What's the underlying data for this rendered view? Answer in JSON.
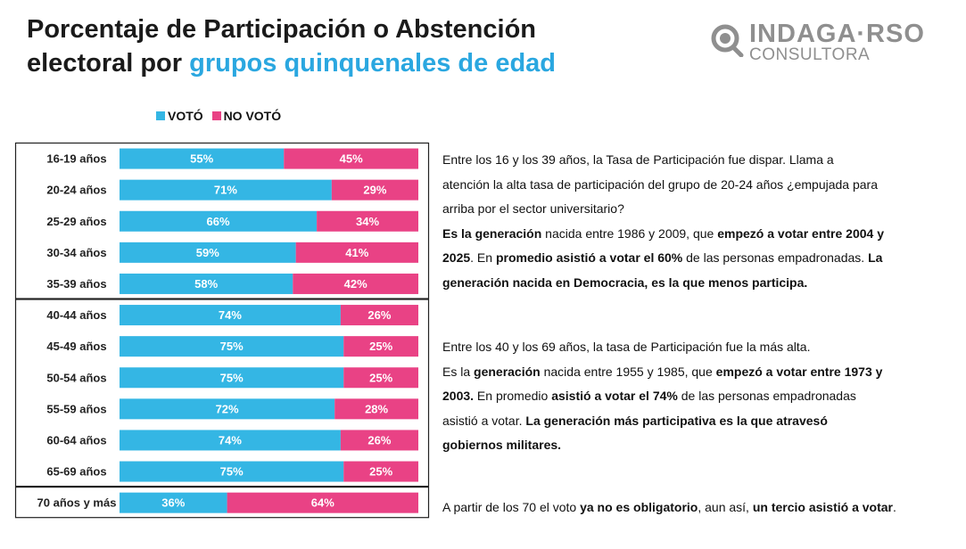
{
  "title": {
    "line1": "Porcentaje de Participación o Abstención",
    "line2_prefix": "electoral por ",
    "line2_highlight": "grupos quinquenales de edad"
  },
  "logo": {
    "main": "INDAGA·RSO",
    "sub": "CONSULTORA",
    "icon": "magnifier-icon"
  },
  "colors": {
    "voto": "#34b6e4",
    "no_voto": "#e94285",
    "title_highlight": "#2aa7e0",
    "logo": "#8f8f8f"
  },
  "legend": {
    "voto": "VOTÓ",
    "no_voto": "NO VOTÓ"
  },
  "chart_data": {
    "type": "bar",
    "orientation": "horizontal",
    "stacked": true,
    "categories": [
      "16-19 años",
      "20-24 años",
      "25-29 años",
      "30-34 años",
      "35-39 años",
      "40-44 años",
      "45-49 años",
      "50-54 años",
      "55-59 años",
      "60-64 años",
      "65-69 años",
      "70 años y más"
    ],
    "series": [
      {
        "name": "VOTÓ",
        "values": [
          55,
          71,
          66,
          59,
          58,
          74,
          75,
          75,
          72,
          74,
          75,
          36
        ]
      },
      {
        "name": "NO VOTÓ",
        "values": [
          45,
          29,
          34,
          41,
          42,
          26,
          25,
          25,
          28,
          26,
          25,
          64
        ]
      }
    ],
    "groups": [
      [
        0,
        4
      ],
      [
        5,
        10
      ],
      [
        11,
        11
      ]
    ],
    "unit": "%",
    "xlim": [
      0,
      100
    ]
  },
  "descriptions": [
    {
      "lines": [
        [
          {
            "t": "Entre los 16 y los 39 años, la Tasa de Participación fue dispar. Llama a",
            "b": false
          }
        ],
        [
          {
            "t": "atención la alta tasa de participación del grupo de 20-24 años ¿empujada para",
            "b": false
          }
        ],
        [
          {
            "t": "arriba por el sector universitario?",
            "b": false
          }
        ],
        [
          {
            "t": "Es la generación",
            "b": true
          },
          {
            "t": " nacida entre 1986 y 2009, que ",
            "b": false
          },
          {
            "t": "empezó a votar entre 2004 y",
            "b": true
          }
        ],
        [
          {
            "t": "2025",
            "b": true
          },
          {
            "t": ". En ",
            "b": false
          },
          {
            "t": "promedio asistió a votar el 60%",
            "b": true
          },
          {
            "t": " de las personas empadronadas. ",
            "b": false
          },
          {
            "t": "La",
            "b": true
          }
        ],
        [
          {
            "t": "generación nacida en Democracia, es la que menos participa.",
            "b": true
          }
        ]
      ]
    },
    {
      "lines": [
        [
          {
            "t": "Entre los 40 y los 69 años, la tasa de Participación fue la más alta.",
            "b": false
          }
        ],
        [
          {
            "t": "Es la ",
            "b": false
          },
          {
            "t": "generación",
            "b": true
          },
          {
            "t": " nacida entre 1955 y 1985, que ",
            "b": false
          },
          {
            "t": "empezó a votar entre 1973 y",
            "b": true
          }
        ],
        [
          {
            "t": "2003.",
            "b": true
          },
          {
            "t": " En promedio ",
            "b": false
          },
          {
            "t": "asistió a votar el 74%",
            "b": true
          },
          {
            "t": " de las personas empadronadas",
            "b": false
          }
        ],
        [
          {
            "t": "asistió a votar. ",
            "b": false
          },
          {
            "t": "La generación más participativa es la que atravesó",
            "b": true
          }
        ],
        [
          {
            "t": "gobiernos militares.",
            "b": true
          }
        ]
      ]
    },
    {
      "lines": [
        [
          {
            "t": "A partir de los 70 el voto ",
            "b": false
          },
          {
            "t": "ya no es obligatorio",
            "b": true
          },
          {
            "t": ", aun así, ",
            "b": false
          },
          {
            "t": "un tercio asistió a votar",
            "b": true
          },
          {
            "t": ".",
            "b": false
          }
        ]
      ]
    }
  ]
}
